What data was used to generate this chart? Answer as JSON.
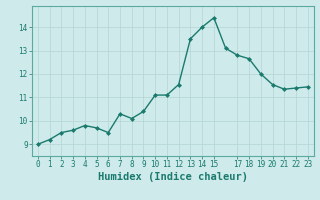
{
  "title": "",
  "xlabel": "Humidex (Indice chaleur)",
  "x": [
    0,
    1,
    2,
    3,
    4,
    5,
    6,
    7,
    8,
    9,
    10,
    11,
    12,
    13,
    14,
    15,
    16,
    17,
    18,
    19,
    20,
    21,
    22,
    23
  ],
  "y": [
    9.0,
    9.2,
    9.5,
    9.6,
    9.8,
    9.7,
    9.5,
    10.3,
    10.1,
    10.4,
    11.1,
    11.1,
    11.55,
    13.5,
    14.0,
    14.4,
    13.1,
    12.8,
    12.65,
    12.0,
    11.55,
    11.35,
    11.4,
    11.45
  ],
  "line_color": "#1a7a6e",
  "marker": "D",
  "marker_size": 2.0,
  "bg_color": "#ceeaea",
  "grid_color": "#b8d8d8",
  "ylim": [
    8.5,
    14.9
  ],
  "yticks": [
    9,
    10,
    11,
    12,
    13,
    14
  ],
  "xticks": [
    0,
    1,
    2,
    3,
    4,
    5,
    6,
    7,
    8,
    9,
    10,
    11,
    12,
    13,
    14,
    15,
    17,
    18,
    19,
    20,
    21,
    22,
    23
  ],
  "xlim": [
    -0.5,
    23.5
  ],
  "linewidth": 1.0,
  "tick_labelsize": 5.5,
  "xlabel_fontsize": 7.5,
  "axis_color": "#1a7a6e",
  "spine_color": "#5aaaa0"
}
